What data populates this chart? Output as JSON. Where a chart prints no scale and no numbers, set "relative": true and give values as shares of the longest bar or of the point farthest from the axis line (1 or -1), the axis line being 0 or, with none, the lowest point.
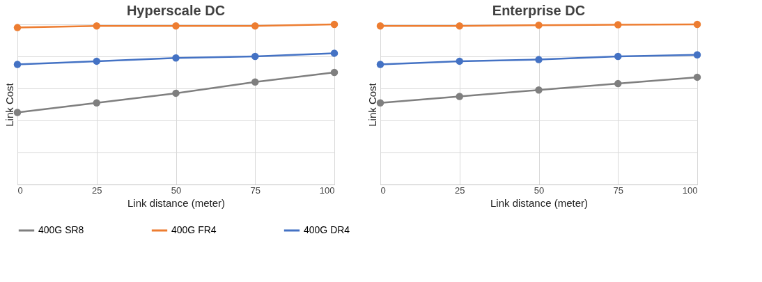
{
  "chart_data": [
    {
      "type": "line",
      "title": "Hyperscale DC",
      "xlabel": "Link distance (meter)",
      "ylabel": "Link Cost",
      "relative": true,
      "x": [
        0,
        25,
        50,
        75,
        100
      ],
      "xlim": [
        0,
        100
      ],
      "xticks": [
        0,
        25,
        50,
        75,
        100
      ],
      "grid": true,
      "legend": "bottom",
      "marker": "circle",
      "line_style": "solid",
      "series": [
        {
          "name": "400G SR8",
          "color": "#7f7f7f",
          "values": [
            0.45,
            0.51,
            0.57,
            0.64,
            0.7
          ]
        },
        {
          "name": "400G FR4",
          "color": "#ed7d31",
          "values": [
            0.98,
            0.99,
            0.99,
            0.99,
            1.0
          ]
        },
        {
          "name": "400G DR4",
          "color": "#4472c4",
          "values": [
            0.75,
            0.77,
            0.79,
            0.8,
            0.82
          ]
        }
      ]
    },
    {
      "type": "line",
      "title": "Enterprise DC",
      "xlabel": "Link distance (meter)",
      "ylabel": "Link Cost",
      "relative": true,
      "x": [
        0,
        25,
        50,
        75,
        100
      ],
      "xlim": [
        0,
        100
      ],
      "xticks": [
        0,
        25,
        50,
        75,
        100
      ],
      "grid": true,
      "legend": "bottom",
      "marker": "circle",
      "line_style": "solid",
      "series": [
        {
          "name": "400G SR8",
          "color": "#7f7f7f",
          "values": [
            0.51,
            0.55,
            0.59,
            0.63,
            0.67
          ]
        },
        {
          "name": "400G FR4",
          "color": "#ed7d31",
          "values": [
            0.99,
            0.99,
            0.995,
            0.998,
            1.0
          ]
        },
        {
          "name": "400G DR4",
          "color": "#4472c4",
          "values": [
            0.75,
            0.77,
            0.78,
            0.8,
            0.81
          ]
        }
      ]
    }
  ]
}
